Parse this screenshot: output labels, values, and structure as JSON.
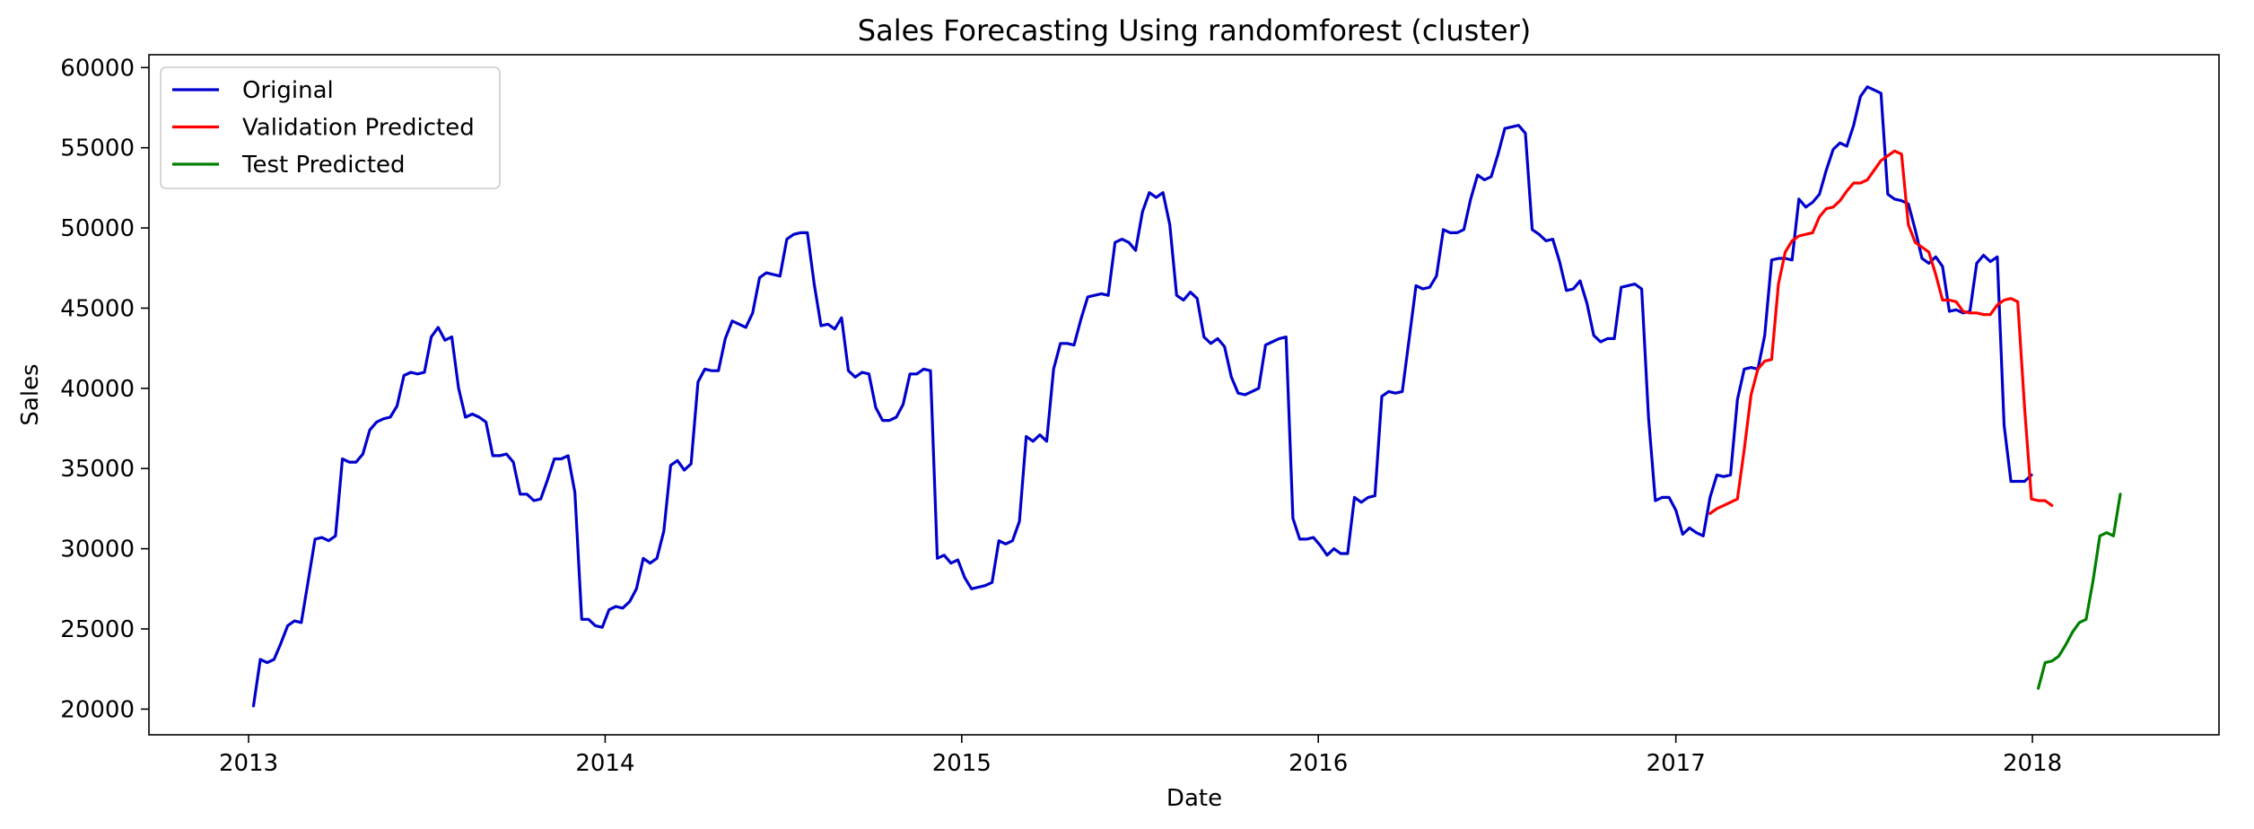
{
  "chart_data": {
    "type": "line",
    "title": "Sales Forecasting Using randomforest (cluster)",
    "xlabel": "Date",
    "ylabel": "Sales",
    "x_ticks": [
      "2013",
      "2014",
      "2015",
      "2016",
      "2017",
      "2018"
    ],
    "y_ticks": [
      "20000",
      "25000",
      "30000",
      "35000",
      "40000",
      "45000",
      "50000",
      "55000",
      "60000"
    ],
    "xlim": [
      "2012-09-21",
      "2018-07-11"
    ],
    "ylim": [
      18400,
      60800
    ],
    "legend_position": "top-left",
    "grid": false,
    "series": [
      {
        "name": "Original",
        "color": "#0000cc",
        "start": "2013-01-06",
        "interval_days": 7,
        "values": [
          20200,
          23100,
          22900,
          23100,
          24100,
          25200,
          25500,
          25400,
          28000,
          30600,
          30700,
          30500,
          30800,
          35600,
          35400,
          35400,
          35900,
          37400,
          37900,
          38100,
          38200,
          38900,
          40800,
          41000,
          40900,
          41000,
          43200,
          43800,
          43000,
          43200,
          40000,
          38200,
          38400,
          38200,
          37900,
          35800,
          35800,
          35900,
          35400,
          33400,
          33400,
          33000,
          33100,
          34300,
          35600,
          35600,
          35800,
          33500,
          25600,
          25600,
          25200,
          25100,
          26200,
          26400,
          26300,
          26700,
          27500,
          29400,
          29100,
          29400,
          31100,
          35200,
          35500,
          34900,
          35300,
          40400,
          41200,
          41100,
          41100,
          43100,
          44200,
          44000,
          43800,
          44700,
          46900,
          47200,
          47100,
          47000,
          49300,
          49600,
          49700,
          49700,
          46500,
          43900,
          44000,
          43700,
          44400,
          41100,
          40700,
          41000,
          40900,
          38800,
          38000,
          38000,
          38200,
          39000,
          40900,
          40900,
          41200,
          41100,
          29400,
          29600,
          29100,
          29300,
          28200,
          27500,
          27600,
          27700,
          27900,
          30500,
          30300,
          30500,
          31700,
          37000,
          36700,
          37100,
          36700,
          41200,
          42800,
          42800,
          42700,
          44300,
          45700,
          45800,
          45900,
          45800,
          49100,
          49300,
          49100,
          48600,
          51000,
          52200,
          51900,
          52200,
          50200,
          45800,
          45500,
          46000,
          45600,
          43200,
          42800,
          43100,
          42600,
          40700,
          39700,
          39600,
          39800,
          40000,
          42700,
          42900,
          43100,
          43200,
          31900,
          30600,
          30600,
          30700,
          30200,
          29600,
          30000,
          29700,
          29700,
          33200,
          32900,
          33200,
          33300,
          39500,
          39800,
          39700,
          39800,
          43100,
          46400,
          46200,
          46300,
          47000,
          49900,
          49700,
          49700,
          49900,
          51800,
          53300,
          53000,
          53200,
          54600,
          56200,
          56300,
          56400,
          55900,
          49900,
          49600,
          49200,
          49300,
          47900,
          46100,
          46200,
          46700,
          45300,
          43300,
          42900,
          43100,
          43100,
          46300,
          46400,
          46500,
          46200,
          38200,
          33000,
          33200,
          33200,
          32400,
          30900,
          31300,
          31000,
          30800,
          33200,
          34600,
          34500,
          34600,
          39300,
          41200,
          41300,
          41200,
          43300,
          48000,
          48100,
          48100,
          48000,
          51800,
          51300,
          51600,
          52100,
          53600,
          54900,
          55300,
          55100,
          56400,
          58200,
          58800,
          58600,
          58400,
          52100,
          51800,
          51700,
          51500,
          49900,
          48100,
          47800,
          48200,
          47600,
          44800,
          44900,
          44700,
          44800,
          47800,
          48300,
          47900,
          48200,
          37700,
          34200,
          34200,
          34200,
          34600
        ]
      },
      {
        "name": "Validation Predicted",
        "color": "#ff0000",
        "start": "2017-02-05",
        "interval_days": 7,
        "values": [
          32200,
          32500,
          32700,
          32900,
          33100,
          36200,
          39600,
          41200,
          41700,
          41800,
          46500,
          48500,
          49200,
          49500,
          49600,
          49700,
          50700,
          51200,
          51300,
          51700,
          52300,
          52800,
          52800,
          53000,
          53600,
          54200,
          54500,
          54800,
          54600,
          50200,
          49100,
          48800,
          48500,
          47100,
          45500,
          45500,
          45400,
          44800,
          44700,
          44700,
          44600,
          44600,
          45200,
          45500,
          45600,
          45400,
          38800,
          33100,
          33000,
          33000,
          32700
        ]
      },
      {
        "name": "Test Predicted",
        "color": "#008000",
        "start": "2018-01-07",
        "interval_days": 7,
        "values": [
          21300,
          22900,
          23000,
          23300,
          24000,
          24800,
          25400,
          25600,
          28000,
          30800,
          31000,
          30800,
          33400
        ]
      }
    ]
  }
}
